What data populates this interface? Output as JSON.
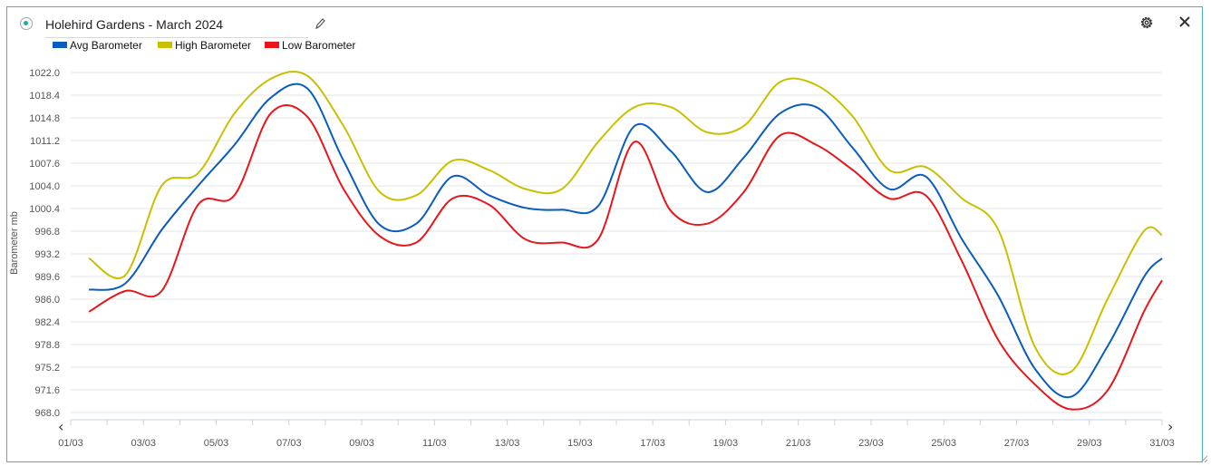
{
  "widget": {
    "title": "Holehird Gardens - March 2024",
    "accent_color": "#19b394",
    "icons": {
      "status": "status-dot-icon",
      "edit": "pencil-icon",
      "settings": "gear-icon",
      "close": "close-icon",
      "scroll_left": "chevron-left-icon",
      "scroll_right": "chevron-right-icon"
    },
    "nav": {
      "left": "‹",
      "right": "›"
    }
  },
  "chart_data": {
    "type": "line",
    "title": "",
    "xlabel": "",
    "ylabel": "Barometer mb",
    "ylim": [
      968.0,
      1022.0
    ],
    "xlim": [
      1,
      31
    ],
    "y_ticks": [
      "968.0",
      "971.6",
      "975.2",
      "978.8",
      "982.4",
      "986.0",
      "989.6",
      "993.2",
      "996.8",
      "1000.4",
      "1004.0",
      "1007.6",
      "1011.2",
      "1014.8",
      "1018.4",
      "1022.0"
    ],
    "x_ticks": [
      {
        "day": 1,
        "label": "01/03"
      },
      {
        "day": 3,
        "label": "03/03"
      },
      {
        "day": 5,
        "label": "05/03"
      },
      {
        "day": 7,
        "label": "07/03"
      },
      {
        "day": 9,
        "label": "09/03"
      },
      {
        "day": 11,
        "label": "11/03"
      },
      {
        "day": 13,
        "label": "13/03"
      },
      {
        "day": 15,
        "label": "15/03"
      },
      {
        "day": 17,
        "label": "17/03"
      },
      {
        "day": 19,
        "label": "19/03"
      },
      {
        "day": 21,
        "label": "21/03"
      },
      {
        "day": 23,
        "label": "23/03"
      },
      {
        "day": 25,
        "label": "25/03"
      },
      {
        "day": 27,
        "label": "27/03"
      },
      {
        "day": 29,
        "label": "29/03"
      },
      {
        "day": 31,
        "label": "31/03"
      }
    ],
    "grid": "horizontal",
    "legend_position": "top-left",
    "x": [
      1.5,
      2.5,
      3.5,
      4.5,
      5.5,
      6.5,
      7.5,
      8.5,
      9.5,
      10.5,
      11.5,
      12.5,
      13.5,
      14.5,
      15.5,
      16.5,
      17.5,
      18.5,
      19.5,
      20.5,
      21.5,
      22.5,
      23.5,
      24.5,
      25.5,
      26.5,
      27.5,
      28.5,
      29.5,
      30.5,
      31.0
    ],
    "series": [
      {
        "name": "Avg Barometer",
        "color": "#0a5cbf",
        "values": [
          987.5,
          988.5,
          997.0,
          1004.0,
          1010.5,
          1018.0,
          1019.5,
          1008.0,
          997.8,
          998.0,
          1005.5,
          1002.5,
          1000.5,
          1000.2,
          1000.8,
          1013.5,
          1009.5,
          1003.0,
          1008.5,
          1015.5,
          1016.5,
          1010.0,
          1003.5,
          1005.5,
          995.5,
          986.5,
          975.0,
          970.5,
          978.5,
          989.5,
          992.5
        ]
      },
      {
        "name": "High Barometer",
        "color": "#c8c000",
        "values": [
          992.5,
          989.8,
          1004.0,
          1006.0,
          1015.5,
          1021.0,
          1021.5,
          1013.5,
          1003.0,
          1002.5,
          1008.0,
          1006.5,
          1003.5,
          1003.5,
          1011.0,
          1016.5,
          1016.5,
          1012.5,
          1013.5,
          1020.5,
          1020.0,
          1015.0,
          1006.5,
          1007.0,
          1002.0,
          997.0,
          978.5,
          974.5,
          986.0,
          996.8,
          996.2
        ]
      },
      {
        "name": "Low Barometer",
        "color": "#e8151b",
        "values": [
          984.0,
          987.3,
          987.3,
          1001.0,
          1002.5,
          1015.5,
          1015.0,
          1003.5,
          996.0,
          995.0,
          1002.0,
          1001.0,
          995.5,
          995.0,
          995.5,
          1011.0,
          1000.0,
          998.0,
          1003.0,
          1012.0,
          1010.5,
          1006.5,
          1002.0,
          1002.5,
          992.0,
          979.5,
          972.5,
          968.5,
          971.5,
          984.0,
          989.0
        ]
      }
    ]
  }
}
